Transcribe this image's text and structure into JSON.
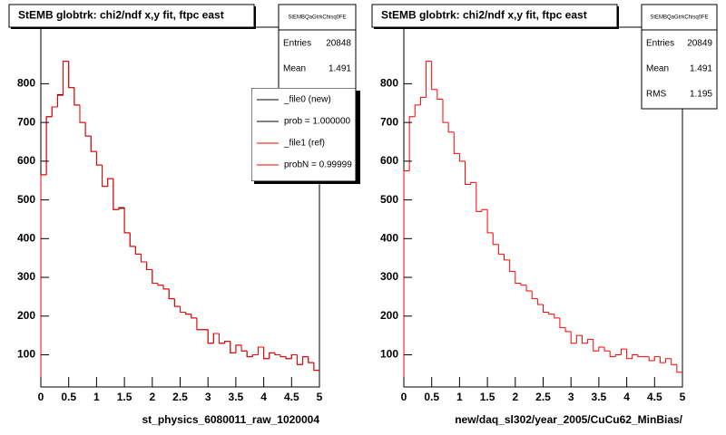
{
  "chart_data": [
    {
      "type": "histogram",
      "title": "StEMB globtrk: chi2/ndf x,y fit, ftpc east",
      "x_label": "st_physics_6080011_raw_1020004",
      "bins": [
        0,
        0.1,
        0.2,
        0.3,
        0.4,
        0.5,
        0.6,
        0.7,
        0.8,
        0.9,
        1,
        1.1,
        1.2,
        1.3,
        1.4,
        1.5,
        1.6,
        1.7,
        1.8,
        1.9,
        2,
        2.1,
        2.2,
        2.3,
        2.4,
        2.5,
        2.6,
        2.7,
        2.8,
        2.9,
        3,
        3.1,
        3.2,
        3.3,
        3.4,
        3.5,
        3.6,
        3.7,
        3.8,
        3.9,
        4,
        4.1,
        4.2,
        4.3,
        4.4,
        4.5,
        4.6,
        4.7,
        4.8,
        4.9,
        5
      ],
      "series": [
        {
          "name": "_file0 (new)",
          "color": "#000000",
          "values": [
            565,
            715,
            740,
            772,
            858,
            790,
            745,
            700,
            665,
            625,
            590,
            535,
            555,
            475,
            480,
            415,
            380,
            360,
            340,
            320,
            285,
            280,
            270,
            245,
            225,
            210,
            205,
            195,
            165,
            165,
            130,
            155,
            130,
            135,
            105,
            125,
            110,
            95,
            100,
            120,
            90,
            105,
            100,
            95,
            90,
            100,
            75,
            95,
            80,
            60
          ]
        },
        {
          "name": "_file1 (ref)",
          "color": "#ff0000",
          "values": [
            565,
            715,
            740,
            770,
            858,
            790,
            745,
            700,
            665,
            625,
            590,
            535,
            555,
            475,
            478,
            415,
            380,
            360,
            340,
            320,
            285,
            280,
            270,
            245,
            225,
            210,
            205,
            195,
            165,
            165,
            130,
            155,
            130,
            135,
            105,
            125,
            110,
            95,
            100,
            120,
            90,
            105,
            100,
            95,
            90,
            100,
            75,
            95,
            80,
            60
          ]
        }
      ],
      "legend_notes": [
        "prob = 1.000000",
        "probN = 0.99999"
      ],
      "stats": {
        "title": "StEMBQaGtrkChisq0FE",
        "rows": [
          [
            "Entries",
            "20848"
          ],
          [
            "Mean",
            "1.491"
          ]
        ]
      },
      "xlim": [
        0,
        5
      ],
      "xticks": [
        0,
        0.5,
        1,
        1.5,
        2,
        2.5,
        3,
        3.5,
        4,
        4.5,
        5
      ],
      "ylim": [
        17,
        946
      ],
      "yticks": [
        100,
        200,
        300,
        400,
        500,
        600,
        700,
        800
      ]
    },
    {
      "type": "histogram",
      "title": "StEMB globtrk: chi2/ndf x,y fit, ftpc east",
      "x_label": "new/daq_sl302/year_2005/CuCu62_MinBias/",
      "bins": [
        0,
        0.1,
        0.2,
        0.3,
        0.4,
        0.5,
        0.6,
        0.7,
        0.8,
        0.9,
        1,
        1.1,
        1.2,
        1.3,
        1.4,
        1.5,
        1.6,
        1.7,
        1.8,
        1.9,
        2,
        2.1,
        2.2,
        2.3,
        2.4,
        2.5,
        2.6,
        2.7,
        2.8,
        2.9,
        3,
        3.1,
        3.2,
        3.3,
        3.4,
        3.5,
        3.6,
        3.7,
        3.8,
        3.9,
        4,
        4.1,
        4.2,
        4.3,
        4.4,
        4.5,
        4.6,
        4.7,
        4.8,
        4.9,
        5
      ],
      "series": [
        {
          "color": "#ff0000",
          "values": [
            575,
            715,
            745,
            765,
            858,
            785,
            760,
            700,
            675,
            620,
            600,
            540,
            545,
            470,
            475,
            415,
            385,
            360,
            345,
            315,
            285,
            280,
            265,
            245,
            230,
            210,
            205,
            195,
            170,
            160,
            130,
            150,
            130,
            140,
            110,
            120,
            110,
            95,
            100,
            115,
            90,
            100,
            95,
            95,
            85,
            95,
            80,
            90,
            75,
            55
          ]
        }
      ],
      "stats": {
        "title": "StEMBQaGtrkChisq0FE",
        "rows": [
          [
            "Entries",
            "20849"
          ],
          [
            "Mean",
            "1.491"
          ],
          [
            "RMS",
            "1.195"
          ]
        ]
      },
      "xlim": [
        0,
        5
      ],
      "xticks": [
        0,
        0.5,
        1,
        1.5,
        2,
        2.5,
        3,
        3.5,
        4,
        4.5,
        5
      ],
      "ylim": [
        17,
        946
      ],
      "yticks": [
        100,
        200,
        300,
        400,
        500,
        600,
        700,
        800
      ]
    }
  ]
}
